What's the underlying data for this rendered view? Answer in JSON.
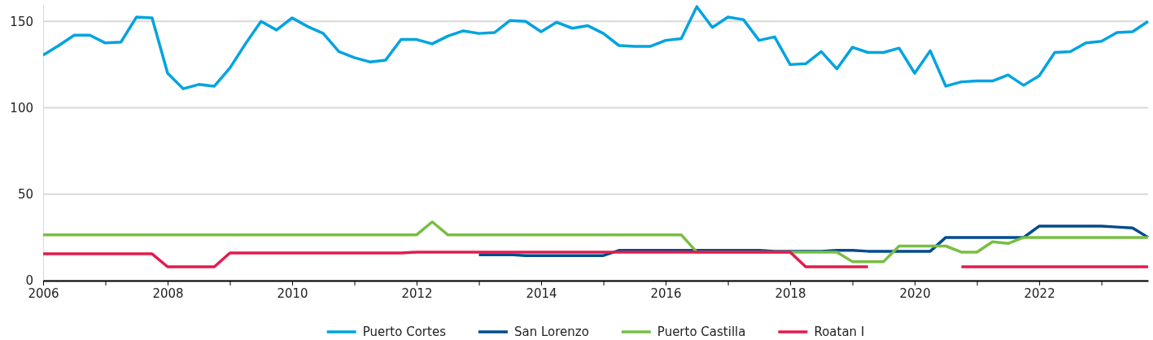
{
  "chart_data": {
    "type": "line",
    "x": [
      2006,
      2006.25,
      2006.5,
      2006.75,
      2007,
      2007.25,
      2007.5,
      2007.75,
      2008,
      2008.25,
      2008.5,
      2008.75,
      2009,
      2009.25,
      2009.5,
      2009.75,
      2010,
      2010.25,
      2010.5,
      2010.75,
      2011,
      2011.25,
      2011.5,
      2011.75,
      2012,
      2012.25,
      2012.5,
      2012.75,
      2013,
      2013.25,
      2013.5,
      2013.75,
      2014,
      2014.25,
      2014.5,
      2014.75,
      2015,
      2015.25,
      2015.5,
      2015.75,
      2016,
      2016.25,
      2016.5,
      2016.75,
      2017,
      2017.25,
      2017.5,
      2017.75,
      2018,
      2018.25,
      2018.5,
      2018.75,
      2019,
      2019.25,
      2019.5,
      2019.75,
      2020,
      2020.25,
      2020.5,
      2020.75,
      2021,
      2021.25,
      2021.5,
      2021.75,
      2022,
      2022.25,
      2022.5,
      2022.75,
      2023,
      2023.25,
      2023.5,
      2023.75
    ],
    "series": [
      {
        "name": "Puerto Cortes",
        "color": "#00a3e0",
        "values": [
          130.5,
          136,
          142,
          142,
          137.5,
          138,
          152.5,
          152,
          120,
          111,
          113.5,
          112.5,
          123,
          137,
          150,
          145,
          152,
          147,
          143,
          132.5,
          129,
          126.5,
          127.5,
          139.5,
          139.5,
          137,
          141.5,
          144.5,
          143,
          143.5,
          150.5,
          150,
          144,
          149.5,
          146,
          147.5,
          143,
          136,
          135.5,
          135.5,
          139,
          140,
          158.5,
          146.5,
          152.5,
          151,
          139,
          141,
          125,
          125.5,
          132.5,
          122.5,
          135,
          132,
          132,
          134.5,
          120,
          133,
          112.5,
          115,
          115.5,
          115.5,
          119,
          113,
          118.5,
          132,
          132.5,
          137.5,
          138.5,
          143.5,
          144,
          150
        ]
      },
      {
        "name": "San Lorenzo",
        "color": "#004b8d",
        "values": [
          null,
          null,
          null,
          null,
          null,
          null,
          null,
          null,
          null,
          null,
          null,
          null,
          null,
          null,
          null,
          null,
          null,
          null,
          null,
          null,
          null,
          null,
          null,
          null,
          null,
          null,
          null,
          null,
          15,
          15,
          15,
          14.5,
          14.5,
          14.5,
          14.5,
          14.5,
          14.5,
          17.5,
          17.5,
          17.5,
          17.5,
          17.5,
          17.5,
          17.5,
          17.5,
          17.5,
          17.5,
          17,
          17,
          17,
          17,
          17.5,
          17.5,
          17,
          17,
          17,
          17,
          17,
          25,
          25,
          25,
          25,
          25,
          25,
          31.5,
          31.5,
          31.5,
          31.5,
          31.5,
          31,
          30.5,
          25
        ]
      },
      {
        "name": "Puerto Castilla",
        "color": "#78be43",
        "values": [
          26.5,
          26.5,
          26.5,
          26.5,
          26.5,
          26.5,
          26.5,
          26.5,
          26.5,
          26.5,
          26.5,
          26.5,
          26.5,
          26.5,
          26.5,
          26.5,
          26.5,
          26.5,
          26.5,
          26.5,
          26.5,
          26.5,
          26.5,
          26.5,
          26.5,
          34,
          26.5,
          26.5,
          26.5,
          26.5,
          26.5,
          26.5,
          26.5,
          26.5,
          26.5,
          26.5,
          26.5,
          26.5,
          26.5,
          26.5,
          26.5,
          26.5,
          16.5,
          16.5,
          16.5,
          16.5,
          16.5,
          16.5,
          16.5,
          16.5,
          16.5,
          16.5,
          11,
          11,
          11,
          20,
          20,
          20,
          20,
          16.5,
          16.5,
          22.5,
          21.5,
          25,
          25,
          25,
          25,
          25,
          25,
          25,
          25,
          25
        ]
      },
      {
        "name": "Roatan I",
        "color": "#e31b4c",
        "values": [
          15.5,
          15.5,
          15.5,
          15.5,
          15.5,
          15.5,
          15.5,
          15.5,
          8,
          8,
          8,
          8,
          16,
          16,
          16,
          16,
          16,
          16,
          16,
          16,
          16,
          16,
          16,
          16,
          16.5,
          16.5,
          16.5,
          16.5,
          16.5,
          16.5,
          16.5,
          16.5,
          16.5,
          16.5,
          16.5,
          16.5,
          16.5,
          16.5,
          16.5,
          16.5,
          16.5,
          16.5,
          16.5,
          16.5,
          16.5,
          16.5,
          16.5,
          16.5,
          16.5,
          8,
          8,
          8,
          8,
          8,
          null,
          null,
          null,
          null,
          null,
          8,
          8,
          8,
          8,
          8,
          8,
          8,
          8,
          8,
          8,
          8,
          8,
          8
        ]
      }
    ],
    "xlim": [
      2006,
      2023.75
    ],
    "xticks": [
      2006,
      {
        "value": 2007,
        "label": null
      },
      2008,
      {
        "value": 2009,
        "label": null
      },
      2010,
      {
        "value": 2011,
        "label": null
      },
      2012,
      {
        "value": 2013,
        "label": null
      },
      2014,
      {
        "value": 2015,
        "label": null
      },
      2016,
      {
        "value": 2017,
        "label": null
      },
      2018,
      {
        "value": 2019,
        "label": null
      },
      2020,
      {
        "value": 2021,
        "label": null
      },
      2022,
      {
        "value": 2023,
        "label": null
      }
    ],
    "ylim": [
      0,
      160
    ],
    "yticks": [
      0,
      50,
      100,
      150
    ],
    "grid": "y",
    "legend": "bottom",
    "marker": "none",
    "line_style": "solid"
  }
}
